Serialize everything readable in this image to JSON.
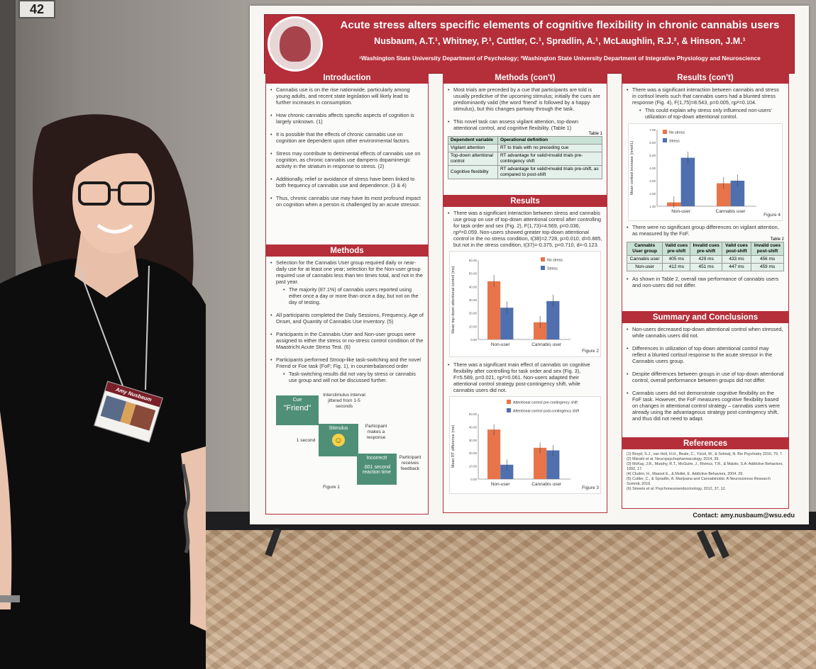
{
  "room": {
    "sign_number": "42"
  },
  "poster": {
    "title": "Acute stress alters specific elements of cognitive flexibility in chronic cannabis users",
    "authors": "Nusbaum, A.T.¹, Whitney, P.¹, Cuttler, C.¹, Spradlin, A.¹, McLaughlin, R.J.², & Hinson, J.M.¹",
    "affiliations": "¹Washington State University Department of Psychology; ²Washington State University Department of Integrative Physiology and Neuroscience",
    "contact": "Contact: amy.nusbaum@wsu.edu",
    "introduction": {
      "title": "Introduction",
      "points": [
        "Cannabis use is on the rise nationwide, particularly among young adults, and recent state legislation will likely lead to further increases in consumption.",
        "How chronic cannabis affects specific aspects of cognition is largely unknown. (1)",
        "It is possible that the effects of chronic cannabis use on cognition are dependent upon other environmental factors.",
        "Stress may contribute to detrimental effects of cannabis use on cognition, as chronic cannabis use dampens dopaminergic activity in the striatum in response to stress. (2)",
        "Additionally, relief or avoidance of stress have been linked to both frequency of cannabis use and dependence. (3 & 4)",
        "Thus, chronic cannabis use may have its most profound impact on cognition when a person is challenged by an acute stressor."
      ]
    },
    "methods": {
      "title": "Methods",
      "p1": "Selection for the Cannabis User group required daily or near-daily use for at least one year; selection for the Non-user group required use of cannabis less than ten times total, and not in the past year.",
      "p1_sub": "The majority (87.1%) of cannabis users reported using either once a day or more than once a day, but not on the day of testing.",
      "p2": "All participants completed the Daily Sessions, Frequency, Age of Onset, and Quantity of Cannabis Use Inventory. (5)",
      "p3": "Participants in the Cannabis User and Non-user groups were assigned to either the stress or no-stress control condition of the Maastricht Acute Stress Test. (6)",
      "p4": "Participants performed Stroop-like task-switching and the novel Friend or Foe task (FoF; Fig. 1), in counterbalanced order",
      "p4_sub": "Task-switching results did not vary by stress or cannabis use group and will not be discussed further.",
      "fig1": {
        "cue_label": "Cue",
        "cue_word": "\"Friend\"",
        "interval_label": "Interstimulus interval jittered from 1-5 seconds",
        "one_second": "1 second",
        "stimulus_label": "Stimulus",
        "response_label": "Participant makes a response",
        "incorrect_label": "Incorrect!",
        "feedback_time": ".601 second reaction time",
        "feedback_label": "Participant receives feedback",
        "caption": "Figure 1"
      }
    },
    "methods_cont": {
      "title": "Methods (con't)",
      "p1": "Most trials are preceded by a cue that participants are told is usually predictive of the upcoming stimulus; initially the cues are predominantly valid (the word 'friend' is followed by a happy stimulus), but this changes partway through the task.",
      "p2": "This novel task can assess vigilant attention, top-down attentional control, and cognitive flexibility. (Table 1)",
      "table_caption": "Table 1",
      "table_headers": [
        "Dependent variable",
        "Operational definition"
      ],
      "table_rows": [
        [
          "Vigilant attention",
          "RT to trials with no preceding cue"
        ],
        [
          "Top-down attentional control",
          "RT advantage for valid>invalid trials pre-contingency shift"
        ],
        [
          "Cognitive flexibility",
          "RT advantage for valid>invalid trials pre-shift, as compared to post-shift"
        ]
      ]
    },
    "results": {
      "title": "Results",
      "p1": "There was a significant interaction between stress and cannabis use group on use of top-down attentional control after controlling for task order and sex (Fig. 2), F(1,73)=4.569, p=0.036, ηp²=0.059. Non-users showed greater top-down attentional control in the no stress condition, t(38)=2.728, p=0.010, d=0.885, but not in the stress condition, t(37)=-0.375, p=0.710, d=-0.123.",
      "p2": "There was a significant main effect of cannabis on cognitive flexibility after controlling for task order and sex (Fig. 3), F=5.589, p=0.021, ηp²=0.061. Non-users adapted their attentional control strategy post-contingency shift, while cannabis users did not.",
      "fig2": {
        "caption": "Figure 2",
        "ylabel": "Mean top-down attentional control (ms)",
        "categories": [
          "Non-user",
          "Cannabis user"
        ],
        "legend": [
          "No stress",
          "Stress"
        ],
        "ticks": [
          "0.00",
          "10.00",
          "20.00",
          "30.00",
          "40.00",
          "50.00",
          "60.00"
        ]
      },
      "fig3": {
        "caption": "Figure 3",
        "ylabel": "Mean RT difference (ms)",
        "categories": [
          "Non-user",
          "Cannabis user"
        ],
        "legend": [
          "Attentional control pre-contingency shift",
          "Attentional control post-contingency shift"
        ],
        "ticks": [
          "0.00",
          "10.00",
          "20.00",
          "30.00",
          "40.00",
          "50.00"
        ]
      }
    },
    "results_cont": {
      "title": "Results (con't)",
      "p1": "There was a significant interaction between cannabis and stress in cortisol levels such that cannabis users had a blunted stress response (Fig. 4), F(1,75)=8.543, p=0.005, ηp²=0.104.",
      "p1_sub": "This could explain why stress only influenced non-users' utilization of top-down attentional control.",
      "fig4": {
        "caption": "Figure 4",
        "ylabel": "Mean cortisol increase (nmol/L)",
        "categories": [
          "Non-user",
          "Cannabis user"
        ],
        "legend": [
          "No stress",
          "Stress"
        ],
        "ticks": [
          "1.00",
          "2.00",
          "3.00",
          "4.00",
          "5.00",
          "6.00",
          "7.00"
        ]
      },
      "p2": "There were no significant group differences on vigilant attention, as measured by the FoF.",
      "table_caption": "Table 2",
      "table_headers": [
        "Cannabis User group",
        "Valid cues pre-shift",
        "Invalid cues pre-shift",
        "Valid cues post-shift",
        "Invalid cues post-shift"
      ],
      "table_rows": [
        [
          "Cannabis user",
          "405 ms",
          "429 ms",
          "433 ms",
          "456 ms"
        ],
        [
          "Non-user",
          "412 ms",
          "451 ms",
          "447 ms",
          "459 ms"
        ]
      ],
      "p3": "As shown in Table 2, overall raw performance of cannabis users and non-users did not differ."
    },
    "summary": {
      "title": "Summary and Conclusions",
      "points": [
        "Non-users decreased top-down attentional control when stressed, while cannabis users did not.",
        "Differences in utilization of top-down attentional control may reflect a blunted cortisol response to the acute stressor in the Cannabis users group.",
        "Despite differences between groups in use of top-down attentional control, overall performance between groups did not differ.",
        "Cannabis users did not demonstrate cognitive flexibility on the FoF task. However, the FoF measures cognitive flexibility based on changes in attentional control strategy – cannabis users were already using the advantageous strategy post-contingency shift, and thus did not need to adapt."
      ]
    },
    "references": {
      "title": "References",
      "items": [
        "(1) Broyd, S.J., van Hell, H.H., Beale, C., Yücel, M., & Solowij, N. Bio Psychiatry 2016, 79, 7.",
        "(2) Mizrahi et al. Neuropsychopharmacology, 2014, 39.",
        "(3) McKay, J.R., Murphy, R.T., McGuire, J., Rivinus, T.R., & Maisto, S.A. Addictive Behaviors, 1992, 17.",
        "(4) Cludmi, H., Massot E., & Mollet, E. Addictive Behaviors, 2004, 29.",
        "(5) Cuttler, C., & Spradlin, A. Marijuana and Cannabinoids: A Neuroscience Research Summit, 2016.",
        "(6) Smeets et al. Psychoneuroendocrinology, 2012, 37, 12."
      ]
    }
  },
  "badge": {
    "name": "Amy Nusbaum"
  },
  "colors": {
    "banner": "#b52f3a",
    "bar_orange": "#e8754a",
    "bar_blue": "#4f6fae",
    "fig1_green": "#4f8f78"
  },
  "chart_data": [
    {
      "type": "bar",
      "title": "Figure 2",
      "ylabel": "Mean top-down attentional control (ms)",
      "categories": [
        "Non-user",
        "Cannabis user"
      ],
      "ylim": [
        0,
        60
      ],
      "series": [
        {
          "name": "No stress",
          "values": [
            44,
            13
          ]
        },
        {
          "name": "Stress",
          "values": [
            24,
            29
          ]
        }
      ]
    },
    {
      "type": "bar",
      "title": "Figure 3",
      "ylabel": "Mean RT difference (ms)",
      "categories": [
        "Non-user",
        "Cannabis user"
      ],
      "ylim": [
        0,
        50
      ],
      "series": [
        {
          "name": "Attentional control pre-contingency shift",
          "values": [
            38,
            24
          ]
        },
        {
          "name": "Attentional control post-contingency shift",
          "values": [
            11,
            22
          ]
        }
      ]
    },
    {
      "type": "bar",
      "title": "Figure 4",
      "ylabel": "Mean cortisol increase (nmol/L)",
      "categories": [
        "Non-user",
        "Cannabis user"
      ],
      "ylim": [
        1,
        7
      ],
      "series": [
        {
          "name": "No stress",
          "values": [
            1.3,
            2.8
          ]
        },
        {
          "name": "Stress",
          "values": [
            4.8,
            3.0
          ]
        }
      ]
    }
  ]
}
